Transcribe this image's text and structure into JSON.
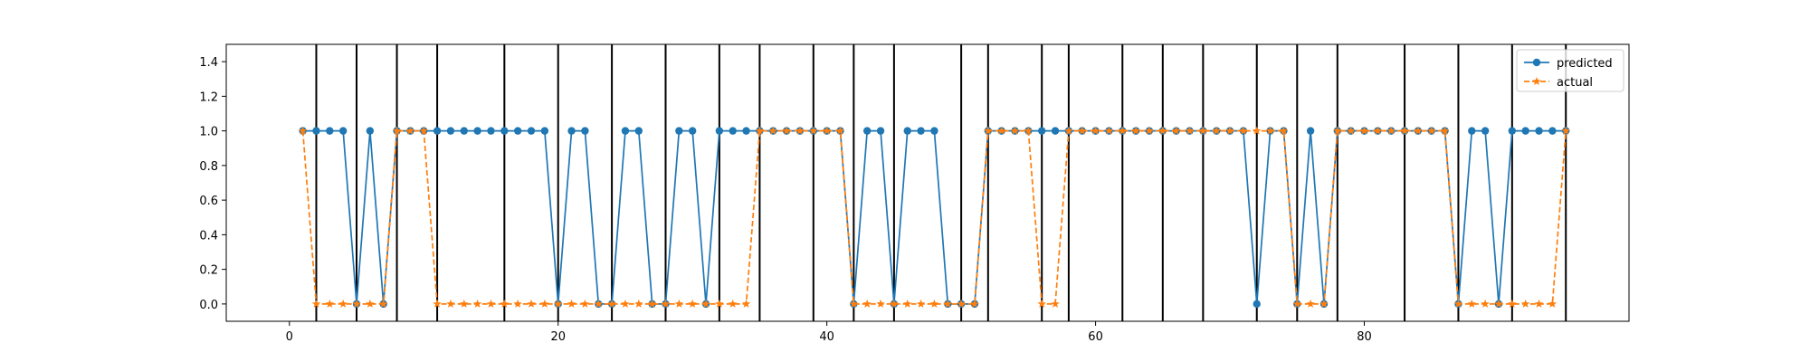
{
  "chart_data": {
    "type": "line",
    "xlim": [
      -4.7,
      99.7
    ],
    "ylim": [
      -0.1,
      1.5
    ],
    "x_ticks": [
      0,
      20,
      40,
      60,
      80
    ],
    "y_ticks": [
      0.0,
      0.2,
      0.4,
      0.6,
      0.8,
      1.0,
      1.2,
      1.4
    ],
    "x_tick_labels": [
      "0",
      "20",
      "40",
      "60",
      "80"
    ],
    "y_tick_labels": [
      "0.0",
      "0.2",
      "0.4",
      "0.6",
      "0.8",
      "1.0",
      "1.2",
      "1.4"
    ],
    "vertical_lines_x": [
      2,
      5,
      8,
      11,
      16,
      20,
      24,
      28,
      32,
      35,
      39,
      42,
      45,
      50,
      52,
      56,
      58,
      62,
      65,
      68,
      72,
      75,
      78,
      83,
      87,
      91,
      95
    ],
    "legend_position": "top-right",
    "grid": false,
    "x": [
      1,
      2,
      3,
      4,
      5,
      6,
      7,
      8,
      9,
      10,
      11,
      12,
      13,
      14,
      15,
      16,
      17,
      18,
      19,
      20,
      21,
      22,
      23,
      24,
      25,
      26,
      27,
      28,
      29,
      30,
      31,
      32,
      33,
      34,
      35,
      36,
      37,
      38,
      39,
      40,
      41,
      42,
      43,
      44,
      45,
      46,
      47,
      48,
      49,
      50,
      51,
      52,
      53,
      54,
      55,
      56,
      57,
      58,
      59,
      60,
      61,
      62,
      63,
      64,
      65,
      66,
      67,
      68,
      69,
      70,
      71,
      72,
      73,
      74,
      75,
      76,
      77,
      78,
      79,
      80,
      81,
      82,
      83,
      84,
      85,
      86,
      87,
      88,
      89,
      90,
      91,
      92,
      93,
      94,
      95
    ],
    "series": [
      {
        "name": "predicted",
        "color": "#1f77b4",
        "marker": "circle",
        "linestyle": "solid",
        "values": [
          1,
          1,
          1,
          1,
          0,
          1,
          0,
          1,
          1,
          1,
          1,
          1,
          1,
          1,
          1,
          1,
          1,
          1,
          1,
          0,
          1,
          1,
          0,
          0,
          1,
          1,
          0,
          0,
          1,
          1,
          0,
          1,
          1,
          1,
          1,
          1,
          1,
          1,
          1,
          1,
          1,
          0,
          1,
          1,
          0,
          1,
          1,
          1,
          0,
          0,
          0,
          1,
          1,
          1,
          1,
          1,
          1,
          1,
          1,
          1,
          1,
          1,
          1,
          1,
          1,
          1,
          1,
          1,
          1,
          1,
          1,
          0,
          1,
          1,
          0,
          1,
          0,
          1,
          1,
          1,
          1,
          1,
          1,
          1,
          1,
          1,
          0,
          1,
          1,
          0,
          1,
          1,
          1,
          1,
          1
        ]
      },
      {
        "name": "actual",
        "color": "#ff7f0e",
        "marker": "star",
        "linestyle": "dashed",
        "values": [
          1,
          0,
          0,
          0,
          0,
          0,
          0,
          1,
          1,
          1,
          0,
          0,
          0,
          0,
          0,
          0,
          0,
          0,
          0,
          0,
          0,
          0,
          0,
          0,
          0,
          0,
          0,
          0,
          0,
          0,
          0,
          0,
          0,
          0,
          1,
          1,
          1,
          1,
          1,
          1,
          1,
          0,
          0,
          0,
          0,
          0,
          0,
          0,
          0,
          0,
          0,
          1,
          1,
          1,
          1,
          0,
          0,
          1,
          1,
          1,
          1,
          1,
          1,
          1,
          1,
          1,
          1,
          1,
          1,
          1,
          1,
          1,
          1,
          1,
          0,
          0,
          0,
          1,
          1,
          1,
          1,
          1,
          1,
          1,
          1,
          1,
          0,
          0,
          0,
          0,
          0,
          0,
          0,
          0,
          1
        ]
      }
    ]
  }
}
